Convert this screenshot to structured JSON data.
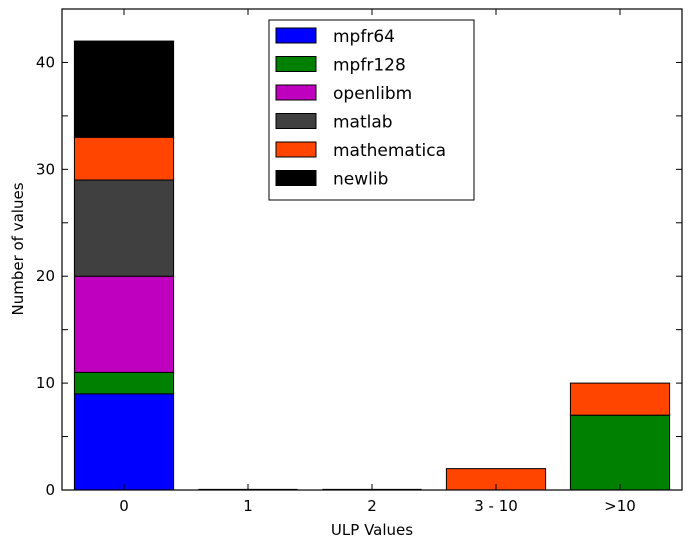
{
  "chart_data": {
    "type": "bar",
    "stacked": true,
    "categories": [
      "0",
      "1",
      "2",
      "3 - 10",
      ">10"
    ],
    "xlabel": "ULP Values",
    "ylabel": "Number of values",
    "ylim": [
      0,
      45
    ],
    "yticks": [
      0,
      10,
      20,
      30,
      40
    ],
    "grid": false,
    "legend_position": "top-center",
    "series": [
      {
        "name": "mpfr64",
        "color": "#0000ff",
        "values": [
          9,
          0,
          0,
          0,
          0
        ]
      },
      {
        "name": "mpfr128",
        "color": "#008000",
        "values": [
          2,
          0,
          0,
          0,
          7
        ]
      },
      {
        "name": "openlibm",
        "color": "#bf00bf",
        "values": [
          9,
          0,
          0,
          0,
          0
        ]
      },
      {
        "name": "matlab",
        "color": "#404040",
        "values": [
          9,
          0,
          0,
          0,
          0
        ]
      },
      {
        "name": "mathematica",
        "color": "#ff4500",
        "values": [
          4,
          0,
          0,
          2,
          3
        ]
      },
      {
        "name": "newlib",
        "color": "#000000",
        "values": [
          9,
          0,
          0,
          0,
          0
        ]
      }
    ]
  }
}
